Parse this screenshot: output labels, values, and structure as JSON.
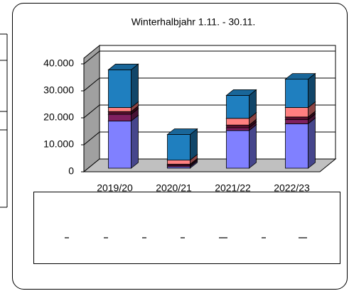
{
  "chart_data": {
    "type": "bar3d_stacked",
    "title": "Winterhalbjahr 1.11. - 30.11.",
    "categories": [
      "2019/20",
      "2020/21",
      "2021/22",
      "2022/23"
    ],
    "series": [
      {
        "color": "#8080ff",
        "values": [
          17500,
          500,
          14000,
          16500
        ]
      },
      {
        "color": "#802060",
        "values": [
          2500,
          500,
          1000,
          1500
        ]
      },
      {
        "color": "#5a1030",
        "values": [
          1000,
          500,
          1000,
          1000
        ]
      },
      {
        "color": "#ff8080",
        "values": [
          1500,
          1500,
          2500,
          3500
        ]
      },
      {
        "color": "#1f7fbf",
        "values": [
          14000,
          9500,
          8500,
          10500
        ]
      }
    ],
    "ylim": [
      0,
      40000
    ],
    "yticks": [
      0,
      {
        "value": 10000,
        "label": "10.000"
      },
      {
        "value": 20000,
        "label": "20.000"
      },
      {
        "value": 30000,
        "label": "30.000"
      },
      {
        "value": 40000,
        "label": "40.000"
      }
    ],
    "grid": true
  }
}
